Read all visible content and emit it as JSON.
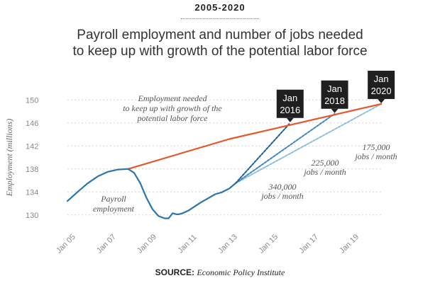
{
  "header": {
    "eyebrow": "2005-2020",
    "title_line1": "Payroll employment and number of jobs needed",
    "title_line2": "to keep up with growth of the potential labor force"
  },
  "source": {
    "label": "SOURCE:",
    "value": "Economic Policy Institute"
  },
  "colors": {
    "payroll": "#2a76ad",
    "needed": "#e8562a",
    "path_340": "#1e5f96",
    "path_225": "#3f86c0",
    "path_175": "#8cbfe0",
    "callout_bg": "#1f1f1f",
    "grid": "#d3d3d3"
  },
  "chart_data": {
    "type": "line",
    "ylabel": "Employment (millions)",
    "xlabel": "",
    "ylim": [
      128,
      152
    ],
    "xlim": [
      2005,
      2020.6
    ],
    "y_ticks": [
      "130",
      "134",
      "138",
      "142",
      "146",
      "150"
    ],
    "x_ticks": [
      "Jan 05",
      "Jan 07",
      "Jan 09",
      "Jan 11",
      "Jan 13",
      "Jan 15",
      "Jan 17",
      "Jan 19"
    ],
    "series": [
      {
        "key": "payroll",
        "x": [
          2005.0,
          2005.5,
          2006.0,
          2006.5,
          2007.0,
          2007.5,
          2008.0,
          2008.3,
          2008.6,
          2008.9,
          2009.2,
          2009.5,
          2009.8,
          2010.0,
          2010.2,
          2010.4,
          2010.5,
          2010.7,
          2011.0,
          2011.3,
          2011.6,
          2012.0,
          2012.3,
          2012.6,
          2013.0,
          2013.3
        ],
        "y": [
          132.4,
          134.0,
          135.5,
          136.7,
          137.5,
          137.9,
          138.0,
          137.3,
          135.5,
          133.0,
          131.0,
          129.8,
          129.4,
          129.4,
          130.3,
          130.1,
          130.1,
          130.3,
          130.8,
          131.5,
          132.2,
          133.0,
          133.6,
          133.9,
          134.6,
          135.5
        ]
      },
      {
        "key": "needed",
        "x": [
          2008.0,
          2013.0,
          2020.5
        ],
        "y": [
          138.0,
          143.2,
          149.3
        ]
      },
      {
        "key": "path_340",
        "x": [
          2013.3,
          2016.0
        ],
        "y": [
          135.5,
          146.0
        ]
      },
      {
        "key": "path_225",
        "x": [
          2013.3,
          2018.2
        ],
        "y": [
          135.5,
          147.6
        ]
      },
      {
        "key": "path_175",
        "x": [
          2013.3,
          2020.5
        ],
        "y": [
          135.5,
          149.3
        ]
      }
    ],
    "callouts": [
      {
        "line1": "Jan",
        "line2": "2016",
        "x": 2016.0,
        "y": 146.0
      },
      {
        "line1": "Jan",
        "line2": "2018",
        "x": 2018.2,
        "y": 147.6
      },
      {
        "line1": "Jan",
        "line2": "2020",
        "x": 2020.5,
        "y": 149.3
      }
    ],
    "annotations": [
      {
        "key": "needed",
        "lines": [
          "Employment needed",
          "to keep up with growth of the",
          "potential labor force"
        ]
      },
      {
        "key": "payroll",
        "lines": [
          "Payroll",
          "employment"
        ]
      },
      {
        "key": "path_340",
        "lines": [
          "340,000",
          "jobs / month"
        ]
      },
      {
        "key": "path_225",
        "lines": [
          "225,000",
          "jobs / month"
        ]
      },
      {
        "key": "path_175",
        "lines": [
          "175,000",
          "jobs / month"
        ]
      }
    ],
    "grid": true
  }
}
